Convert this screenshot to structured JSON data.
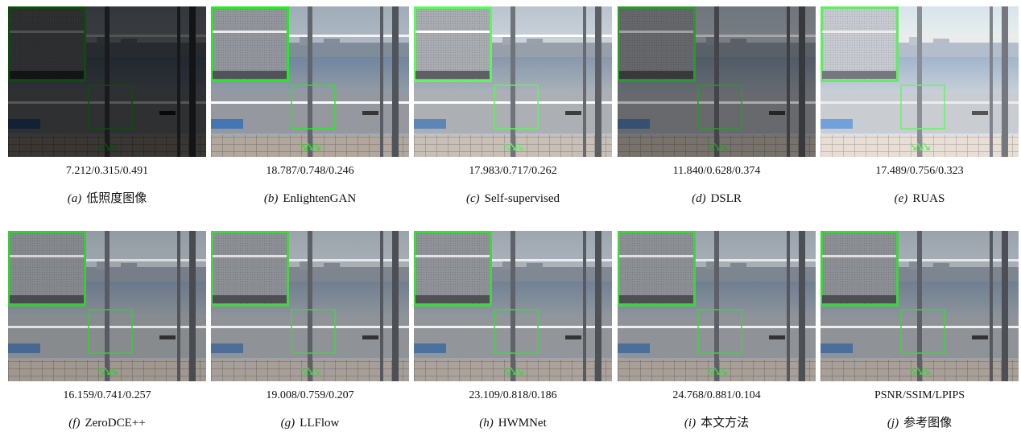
{
  "figure": {
    "panels": [
      {
        "metrics": "7.212/0.315/0.491",
        "tag": "(a)",
        "name": "低照度图像"
      },
      {
        "metrics": "18.787/0.748/0.246",
        "tag": "(b)",
        "name": "EnlightenGAN"
      },
      {
        "metrics": "17.983/0.717/0.262",
        "tag": "(c)",
        "name": "Self-supervised"
      },
      {
        "metrics": "11.840/0.628/0.374",
        "tag": "(d)",
        "name": "DSLR"
      },
      {
        "metrics": "17.489/0.756/0.323",
        "tag": "(e)",
        "name": "RUAS"
      },
      {
        "metrics": "16.159/0.741/0.257",
        "tag": "(f)",
        "name": "ZeroDCE++"
      },
      {
        "metrics": "19.008/0.759/0.207",
        "tag": "(g)",
        "name": "LLFlow"
      },
      {
        "metrics": "23.109/0.818/0.186",
        "tag": "(h)",
        "name": "HWMNet"
      },
      {
        "metrics": "24.768/0.881/0.104",
        "tag": "(i)",
        "name": "本文方法"
      },
      {
        "metrics": "PSNR/SSIM/LPIPS",
        "tag": "(j)",
        "name": "参考图像"
      }
    ]
  }
}
